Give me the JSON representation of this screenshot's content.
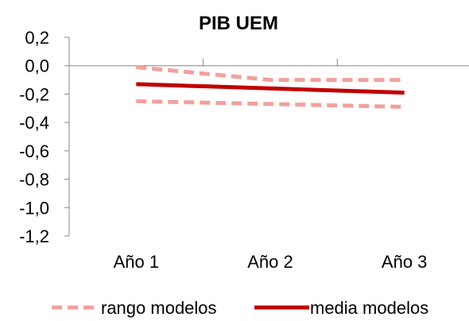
{
  "chart_data": {
    "type": "line",
    "title": "PIB UEM",
    "xlabel": "",
    "ylabel": "",
    "categories": [
      "Año 1",
      "Año 2",
      "Año 3"
    ],
    "ylim": [
      -1.2,
      0.2
    ],
    "yticks": [
      0.2,
      0.0,
      -0.2,
      -0.4,
      -0.6,
      -0.8,
      -1.0,
      -1.2
    ],
    "ytick_labels": [
      "0,2",
      "0,0",
      "-0,2",
      "-0,4",
      "-0,6",
      "-0,8",
      "-1,0",
      "-1,2"
    ],
    "grid": false,
    "legend_position": "bottom",
    "series": [
      {
        "key": "range_upper",
        "name": "rango modelos",
        "style": "dashed",
        "color": "#f4a09a",
        "values": [
          -0.01,
          -0.1,
          -0.1
        ],
        "in_legend": true
      },
      {
        "key": "range_lower",
        "name": "rango modelos",
        "style": "dashed",
        "color": "#f4a09a",
        "values": [
          -0.25,
          -0.27,
          -0.29
        ],
        "in_legend": false
      },
      {
        "key": "mean",
        "name": "media modelos",
        "style": "solid",
        "color": "#c00000",
        "values": [
          -0.13,
          -0.16,
          -0.19
        ],
        "in_legend": true
      }
    ]
  },
  "legend": {
    "range_label": "rango modelos",
    "mean_label": "media modelos"
  }
}
